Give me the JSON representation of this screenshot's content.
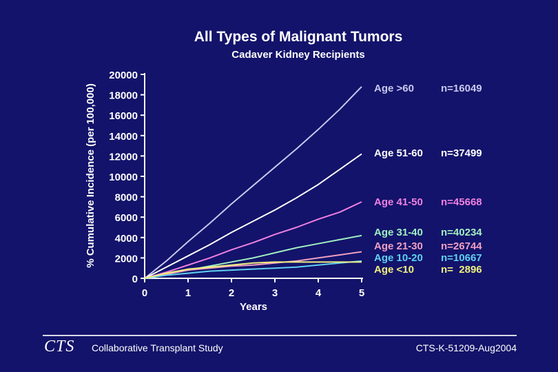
{
  "chart_data": {
    "type": "line",
    "title": "All Types of Malignant Tumors",
    "subtitle": "Cadaver Kidney Recipients",
    "xlabel": "Years",
    "ylabel": "% Cumulative Incidence (per 100,000)",
    "xlim": [
      0,
      5
    ],
    "ylim": [
      0,
      20000
    ],
    "x_ticks": [
      0,
      1,
      2,
      3,
      4,
      5
    ],
    "y_ticks": [
      0,
      2000,
      4000,
      6000,
      8000,
      10000,
      12000,
      14000,
      16000,
      18000,
      20000
    ],
    "grid": false,
    "x": [
      0,
      0.5,
      1,
      1.5,
      2,
      2.5,
      3,
      3.5,
      4,
      4.5,
      5
    ],
    "series": [
      {
        "name": "Age >60",
        "n": "n=16049",
        "color": "#c8c8f0",
        "values": [
          0,
          1700,
          3600,
          5400,
          7300,
          9100,
          10900,
          12700,
          14600,
          16600,
          18800
        ]
      },
      {
        "name": "Age 51-60",
        "n": "n=37499",
        "color": "#ffffff",
        "values": [
          0,
          1100,
          2200,
          3300,
          4500,
          5600,
          6700,
          7900,
          9200,
          10700,
          12200
        ]
      },
      {
        "name": "Age 41-50",
        "n": "n=45668",
        "color": "#f080e0",
        "values": [
          0,
          600,
          1300,
          2000,
          2800,
          3500,
          4300,
          5000,
          5800,
          6500,
          7500
        ]
      },
      {
        "name": "Age 31-40",
        "n": "n=40234",
        "color": "#a0f0c0",
        "values": [
          0,
          400,
          800,
          1200,
          1600,
          2000,
          2500,
          3000,
          3400,
          3800,
          4200
        ]
      },
      {
        "name": "Age 21-30",
        "n": "n=26744",
        "color": "#f0a0c0",
        "values": [
          0,
          400,
          800,
          1000,
          1200,
          1300,
          1500,
          1700,
          2000,
          2300,
          2600
        ]
      },
      {
        "name": "Age 10-20",
        "n": "n=10667",
        "color": "#60d0f0",
        "values": [
          0,
          300,
          500,
          700,
          800,
          900,
          1000,
          1100,
          1300,
          1500,
          1700
        ]
      },
      {
        "name": "Age <10",
        "n": "n=  2896",
        "color": "#f0f080",
        "values": [
          0,
          500,
          900,
          1100,
          1300,
          1500,
          1600,
          1600,
          1600,
          1600,
          1600
        ]
      }
    ]
  },
  "footer": {
    "logo": "CTS",
    "name": "Collaborative Transplant Study",
    "code": "CTS-K-51209-Aug2004"
  }
}
